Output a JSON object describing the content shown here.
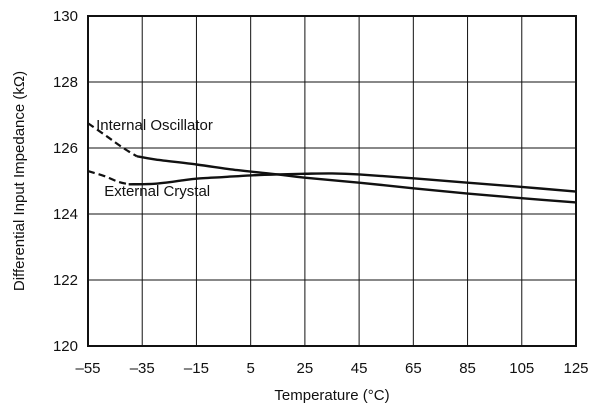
{
  "chart_data": {
    "type": "line",
    "xlabel": "Temperature (°C)",
    "ylabel": "Differential Input Impedance (kΩ)",
    "xlim": [
      -55,
      125
    ],
    "ylim": [
      120,
      130
    ],
    "xticks": [
      -55,
      -35,
      -15,
      5,
      25,
      45,
      65,
      85,
      105,
      125
    ],
    "yticks": [
      120,
      122,
      124,
      126,
      128,
      130
    ],
    "xtick_labels": [
      "–55",
      "–35",
      "–15",
      "5",
      "25",
      "45",
      "65",
      "85",
      "105",
      "125"
    ],
    "ytick_labels": [
      "120",
      "122",
      "124",
      "126",
      "128",
      "130"
    ],
    "grid": true,
    "colors": {
      "line": "#111111",
      "grid": "#111111",
      "background": "#ffffff"
    },
    "series": [
      {
        "name": "Internal Oscillator",
        "dashed_segment": {
          "x": [
            -55,
            -48,
            -42,
            -37
          ],
          "y": [
            126.75,
            126.35,
            126.0,
            125.75
          ]
        },
        "x": [
          -37,
          -30,
          -15,
          0,
          15,
          25,
          45,
          65,
          85,
          105,
          125
        ],
        "y": [
          125.75,
          125.65,
          125.5,
          125.33,
          125.2,
          125.1,
          124.95,
          124.78,
          124.62,
          124.48,
          124.35
        ]
      },
      {
        "name": "External Crystal",
        "dashed_segment": {
          "x": [
            -55,
            -49,
            -44,
            -40
          ],
          "y": [
            125.3,
            125.15,
            124.98,
            124.9
          ]
        },
        "x": [
          -40,
          -30,
          -20,
          -15,
          -5,
          5,
          15,
          25,
          35,
          45,
          65,
          85,
          105,
          125
        ],
        "y": [
          124.9,
          124.92,
          125.02,
          125.07,
          125.12,
          125.17,
          125.2,
          125.22,
          125.23,
          125.2,
          125.08,
          124.95,
          124.82,
          124.68
        ]
      }
    ],
    "annotations": [
      {
        "text": "Internal Oscillator",
        "x": -52,
        "y": 126.55
      },
      {
        "text": "External Crystal",
        "x": -49,
        "y": 124.55
      }
    ]
  }
}
